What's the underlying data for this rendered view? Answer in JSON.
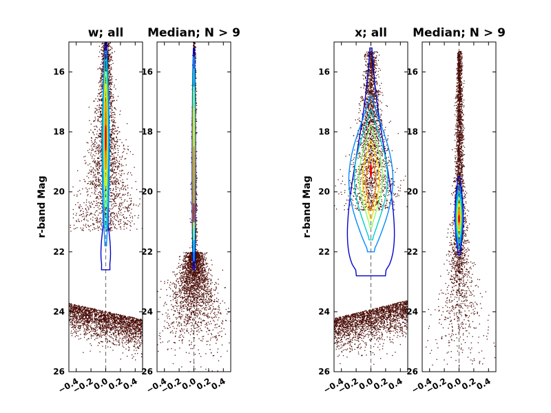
{
  "chart_data": [
    {
      "type": "scatter",
      "title": "w; all",
      "ylabel": "r-band Mag",
      "xlim": [
        -0.5,
        0.5
      ],
      "ylim": [
        26,
        15
      ],
      "x_ticks": [
        -0.4,
        -0.2,
        0.0,
        0.2,
        0.4
      ],
      "y_ticks": [
        16,
        18,
        20,
        22,
        24,
        26
      ],
      "dashed_line_x": 0.0,
      "point_color": "#4a0b05",
      "contour_colors": [
        "#0000cc",
        "#0088ff",
        "#00cccc",
        "#88ff66",
        "#ffdd00",
        "#ff8800",
        "#ee0000"
      ]
    },
    {
      "type": "scatter",
      "title": "Median; N > 9",
      "ylabel": "",
      "xlim": [
        -0.5,
        0.5
      ],
      "ylim": [
        26,
        15
      ],
      "x_ticks": [
        -0.4,
        -0.2,
        0.0,
        0.2,
        0.4
      ],
      "y_ticks": [
        16,
        18,
        20,
        22,
        24,
        26
      ],
      "dashed_line_x": 0.0,
      "point_color": "#4a0b05",
      "contour_colors": [
        "#0000cc",
        "#0088ff",
        "#00cccc",
        "#88ff66",
        "#ffdd00",
        "#ff8800",
        "#ee0000"
      ]
    },
    {
      "type": "scatter",
      "title": "x; all",
      "ylabel": "r-band Mag",
      "xlim": [
        -0.5,
        0.5
      ],
      "ylim": [
        26,
        15
      ],
      "x_ticks": [
        -0.4,
        -0.2,
        0.0,
        0.2,
        0.4
      ],
      "y_ticks": [
        16,
        18,
        20,
        22,
        24,
        26
      ],
      "dashed_line_x": 0.0,
      "point_color": "#4a0b05",
      "contour_colors": [
        "#0000cc",
        "#0088ff",
        "#00cccc",
        "#88ff66",
        "#ffdd00",
        "#ff8800",
        "#ee0000"
      ]
    },
    {
      "type": "scatter",
      "title": "Median; N > 9",
      "ylabel": "",
      "xlim": [
        -0.5,
        0.5
      ],
      "ylim": [
        26,
        15
      ],
      "x_ticks": [
        -0.4,
        -0.2,
        0.0,
        0.2,
        0.4
      ],
      "y_ticks": [
        16,
        18,
        20,
        22,
        24,
        26
      ],
      "dashed_line_x": 0.0,
      "point_color": "#4a0b05",
      "contour_colors": [
        "#0000cc",
        "#0088ff",
        "#00cccc",
        "#88ff66",
        "#ffdd00",
        "#ff8800",
        "#ee0000"
      ]
    }
  ]
}
